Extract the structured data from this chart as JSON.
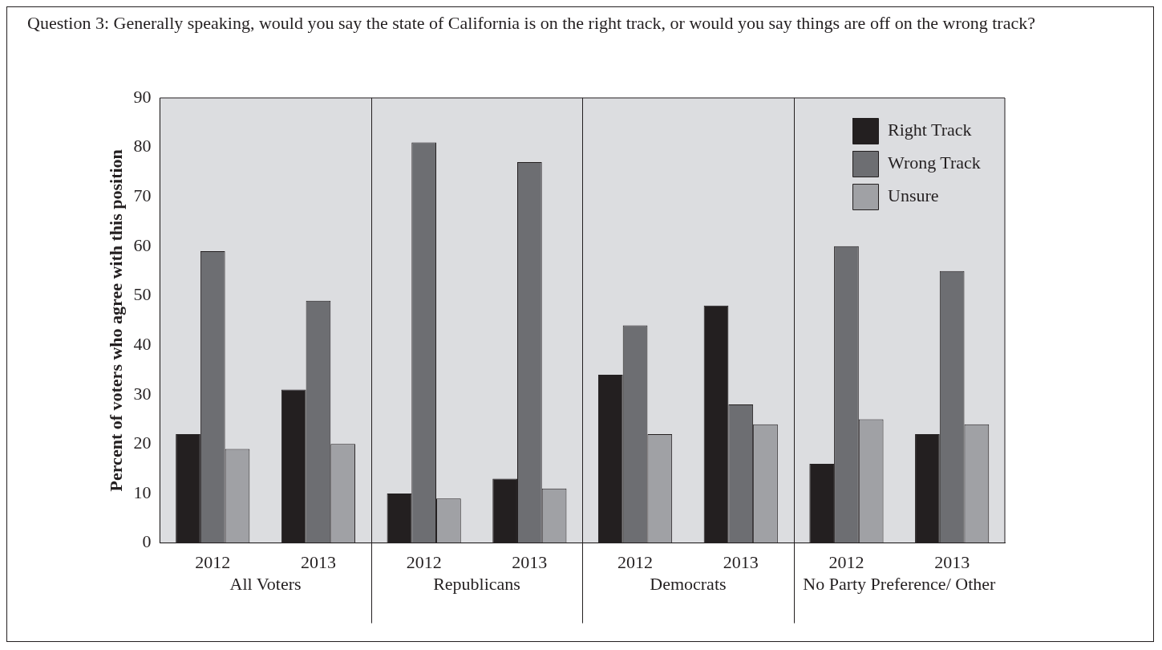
{
  "chart_data": {
    "type": "bar",
    "title": "Question 3: Generally speaking, would you say the state of California is on the right track, or would you say things are off on the wrong track?",
    "ylabel": "Percent of voters who agree with this position",
    "categories": [
      "2012",
      "2013",
      "2012",
      "2013",
      "2012",
      "2013",
      "2012",
      "2013"
    ],
    "annotations": [
      "All Voters",
      "Republicans",
      "Democrats",
      "No Party Preference/ Other"
    ],
    "series": [
      {
        "name": "Right Track",
        "color": "#231f20",
        "values": [
          22,
          31,
          10,
          13,
          34,
          48,
          16,
          22
        ]
      },
      {
        "name": "Wrong Track",
        "color": "#6d6e72",
        "values": [
          59,
          49,
          81,
          77,
          44,
          28,
          60,
          55
        ]
      },
      {
        "name": "Unsure",
        "color": "#a0a1a5",
        "values": [
          19,
          20,
          9,
          11,
          22,
          24,
          25,
          24
        ]
      }
    ],
    "ylim": [
      0,
      90
    ],
    "yticks": [
      0,
      10,
      20,
      30,
      40,
      50,
      60,
      70,
      80,
      90
    ],
    "legend": "top right",
    "grid": false
  }
}
